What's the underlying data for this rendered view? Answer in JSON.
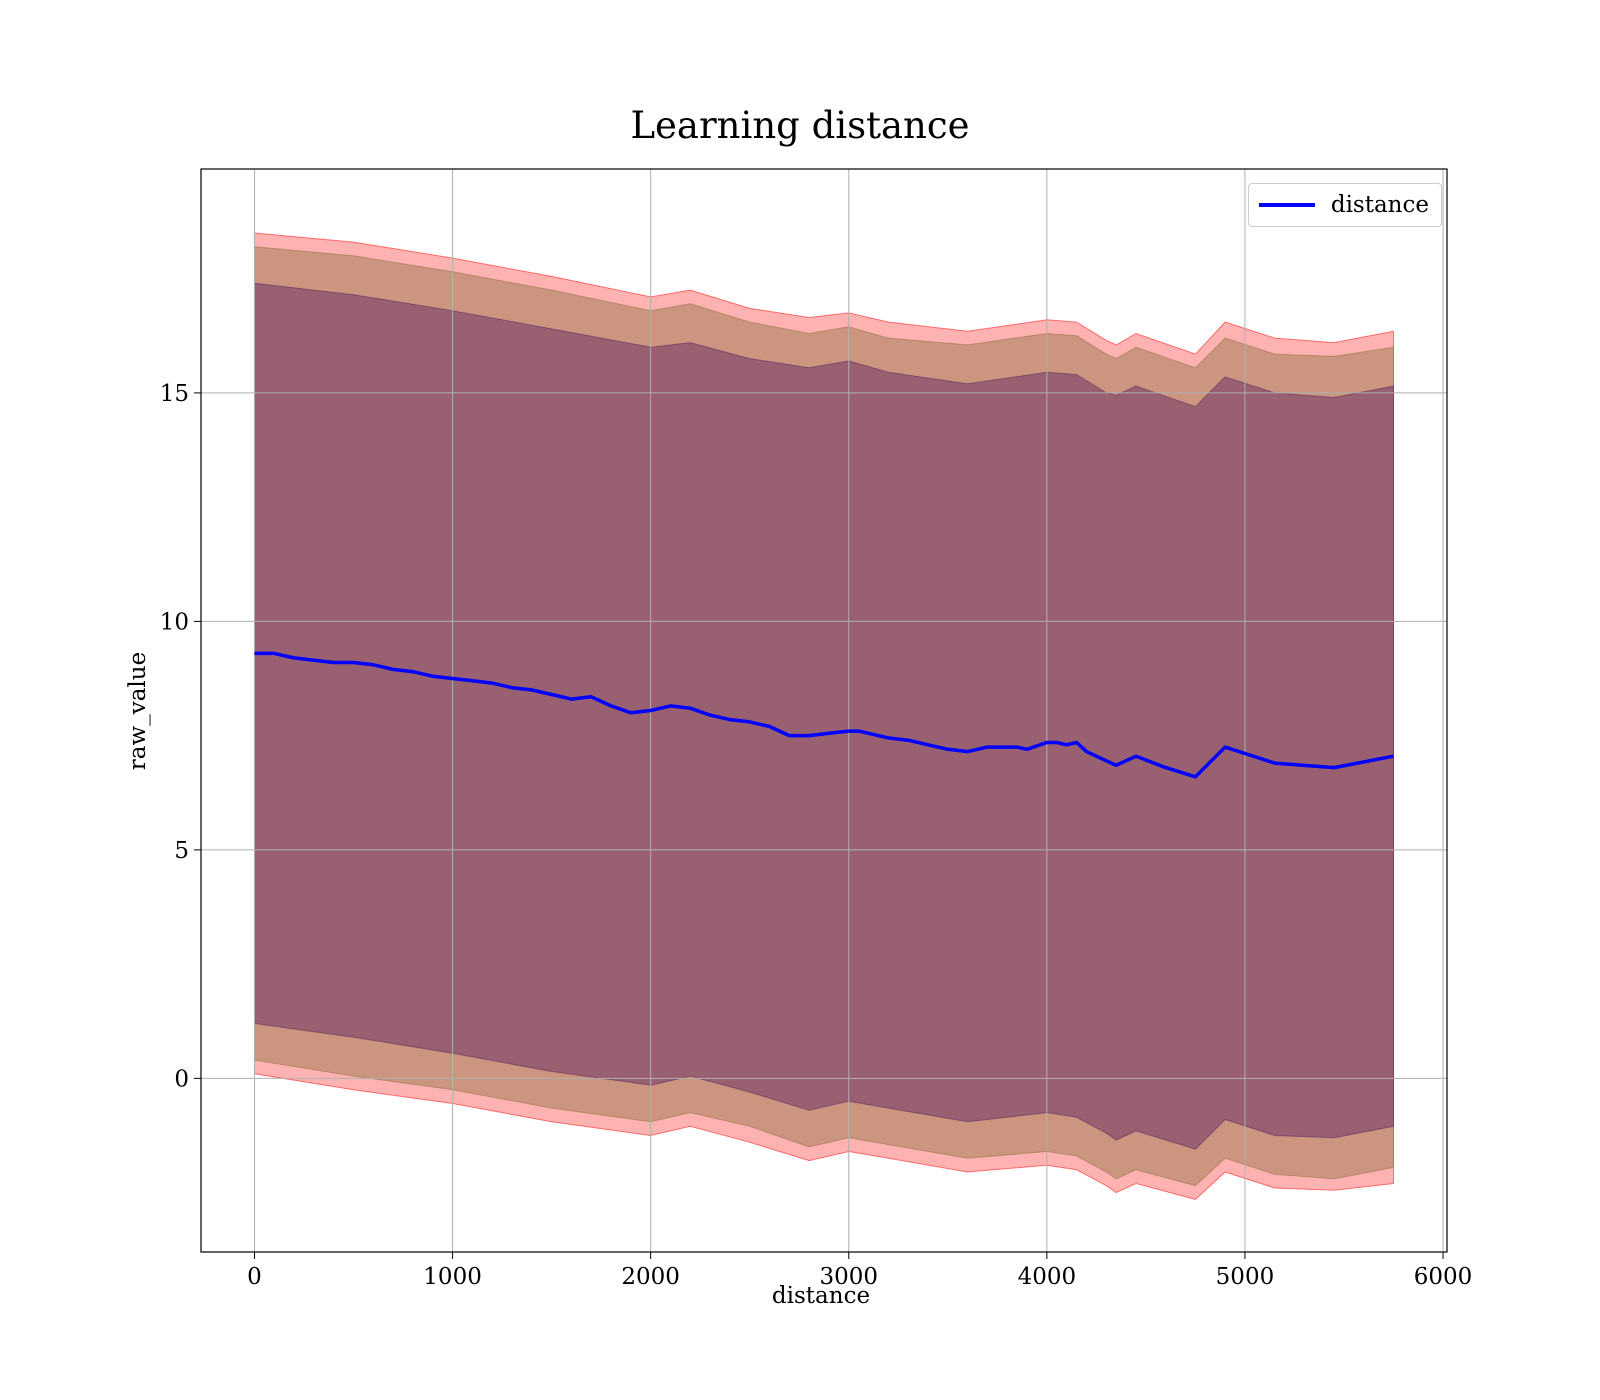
{
  "chart_data": {
    "type": "line",
    "title": "Learning distance",
    "xlabel": "distance",
    "ylabel": "raw_value",
    "xlim": [
      -270,
      6020
    ],
    "ylim": [
      -3.8,
      19.9
    ],
    "xticks": [
      0,
      1000,
      2000,
      3000,
      4000,
      5000,
      6000
    ],
    "yticks": [
      0,
      5,
      10,
      15
    ],
    "grid": true,
    "legend_position": "top-right",
    "colors": {
      "line": "#0000ff",
      "band_outer": "#ff0000",
      "band_middle": "#8c7040",
      "band_inner": "#5a2060",
      "grid": "#b0b0b0",
      "axes": "#000000"
    },
    "series": [
      {
        "name": "distance",
        "x": [
          0,
          100,
          200,
          300,
          400,
          500,
          600,
          700,
          800,
          900,
          1000,
          1100,
          1200,
          1300,
          1400,
          1500,
          1600,
          1700,
          1800,
          1900,
          2000,
          2100,
          2200,
          2300,
          2400,
          2500,
          2600,
          2700,
          2800,
          2900,
          3000,
          3050,
          3100,
          3200,
          3300,
          3400,
          3500,
          3600,
          3700,
          3800,
          3850,
          3900,
          4000,
          4050,
          4100,
          4150,
          4200,
          4300,
          4350,
          4450,
          4600,
          4750,
          4900,
          5150,
          5450,
          5750
        ],
        "y": [
          9.3,
          9.3,
          9.2,
          9.15,
          9.1,
          9.1,
          9.05,
          8.95,
          8.9,
          8.8,
          8.75,
          8.7,
          8.65,
          8.55,
          8.5,
          8.4,
          8.3,
          8.35,
          8.15,
          8.0,
          8.05,
          8.15,
          8.1,
          7.95,
          7.85,
          7.8,
          7.7,
          7.5,
          7.5,
          7.55,
          7.6,
          7.6,
          7.55,
          7.45,
          7.4,
          7.3,
          7.2,
          7.15,
          7.25,
          7.25,
          7.25,
          7.2,
          7.35,
          7.35,
          7.3,
          7.35,
          7.15,
          6.95,
          6.85,
          7.05,
          6.8,
          6.6,
          7.25,
          6.9,
          6.8,
          7.05
        ]
      }
    ],
    "bands": [
      {
        "role": "outer",
        "x": [
          0,
          500,
          1000,
          1500,
          2000,
          2200,
          2500,
          2800,
          3000,
          3200,
          3600,
          4000,
          4150,
          4300,
          4350,
          4450,
          4750,
          4900,
          5150,
          5450,
          5750
        ],
        "upper": [
          18.5,
          18.3,
          17.95,
          17.55,
          17.1,
          17.25,
          16.85,
          16.65,
          16.75,
          16.55,
          16.35,
          16.6,
          16.55,
          16.15,
          16.05,
          16.3,
          15.85,
          16.55,
          16.2,
          16.1,
          16.35
        ],
        "lower": [
          0.1,
          -0.25,
          -0.55,
          -0.95,
          -1.25,
          -1.05,
          -1.4,
          -1.8,
          -1.6,
          -1.75,
          -2.05,
          -1.9,
          -2.0,
          -2.35,
          -2.5,
          -2.3,
          -2.65,
          -2.05,
          -2.4,
          -2.45,
          -2.3
        ]
      },
      {
        "role": "middle",
        "x": [
          0,
          500,
          1000,
          1500,
          2000,
          2200,
          2500,
          2800,
          3000,
          3200,
          3600,
          4000,
          4150,
          4300,
          4350,
          4450,
          4750,
          4900,
          5150,
          5450,
          5750
        ],
        "upper": [
          18.2,
          18.0,
          17.65,
          17.25,
          16.8,
          16.95,
          16.55,
          16.3,
          16.45,
          16.2,
          16.05,
          16.3,
          16.25,
          15.85,
          15.75,
          16.0,
          15.55,
          16.2,
          15.85,
          15.8,
          16.0
        ],
        "lower": [
          0.4,
          0.05,
          -0.25,
          -0.65,
          -0.95,
          -0.75,
          -1.05,
          -1.5,
          -1.3,
          -1.45,
          -1.75,
          -1.6,
          -1.7,
          -2.05,
          -2.2,
          -2.0,
          -2.35,
          -1.75,
          -2.1,
          -2.2,
          -1.95
        ]
      },
      {
        "role": "inner",
        "x": [
          0,
          500,
          1000,
          1500,
          2000,
          2200,
          2500,
          2800,
          3000,
          3200,
          3600,
          4000,
          4150,
          4300,
          4350,
          4450,
          4750,
          4900,
          5150,
          5450,
          5750
        ],
        "upper": [
          17.4,
          17.15,
          16.8,
          16.4,
          16.0,
          16.1,
          15.75,
          15.55,
          15.7,
          15.45,
          15.2,
          15.45,
          15.4,
          15.0,
          14.95,
          15.15,
          14.7,
          15.35,
          15.0,
          14.9,
          15.15
        ],
        "lower": [
          1.2,
          0.9,
          0.55,
          0.15,
          -0.15,
          0.05,
          -0.3,
          -0.7,
          -0.5,
          -0.65,
          -0.95,
          -0.75,
          -0.85,
          -1.2,
          -1.35,
          -1.15,
          -1.55,
          -0.9,
          -1.25,
          -1.3,
          -1.05
        ]
      }
    ]
  }
}
